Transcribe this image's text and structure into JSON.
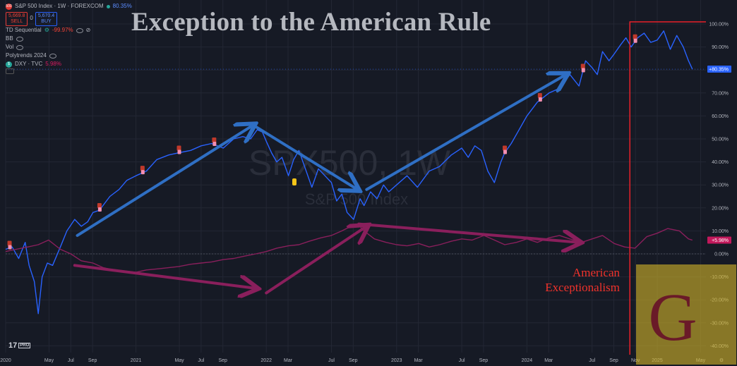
{
  "header": {
    "symbol_badge": "500",
    "symbol_title": "S&P 500 Index · 1W · FOREXCOM",
    "last_change": "80.35%",
    "sell_price": "5,669.8",
    "sell_label": "SELL",
    "spread": "0",
    "buy_price": "5,670.4",
    "buy_label": "BUY"
  },
  "indicators": [
    {
      "name": "TD Sequential",
      "value": "-99.97%"
    },
    {
      "name": "BB",
      "value": ""
    },
    {
      "name": "Vol",
      "value": ""
    },
    {
      "name": "Polytrends 2024",
      "value": ""
    }
  ],
  "compare": {
    "symbol": "DXY · TVC",
    "value": "5.98%"
  },
  "title": "Exception to the American Rule",
  "watermark": {
    "ticker": "SPX500, 1W",
    "name": "S&P 500 Index"
  },
  "annotation": {
    "line1": "American",
    "line2": "Exceptionalism"
  },
  "logo": {
    "letter": "G"
  },
  "footer_brand": {
    "mark": "17",
    "tag": "PRO"
  },
  "colors": {
    "spx": "#2962ff",
    "dxy": "#8a1f5c",
    "arrow_blue": "#2f6fc4",
    "arrow_purple": "#8a1f5c",
    "highlight_box": "#e8202a",
    "background": "#161a25"
  },
  "chart_data": {
    "type": "line",
    "y_axis_labels": [
      "100.00%",
      "90.00%",
      "80.00%",
      "70.00%",
      "60.00%",
      "50.00%",
      "40.00%",
      "30.00%",
      "20.00%",
      "10.00%",
      "0.00%",
      "-10.00%",
      "-20.00%",
      "-30.00%",
      "-40.00%"
    ],
    "ylim": [
      -45,
      105
    ],
    "y_scale": "percent",
    "x_axis_labels": [
      "2020",
      "May",
      "Jul",
      "Sep",
      "2021",
      "May",
      "Jul",
      "Sep",
      "2022",
      "Mar",
      "Jul",
      "Sep",
      "2023",
      "Mar",
      "Jul",
      "Sep",
      "2024",
      "Mar",
      "Jul",
      "Sep",
      "Nov",
      "2025",
      "May"
    ],
    "x_tick_t": [
      0.0,
      0.333,
      0.5,
      0.667,
      1.0,
      1.333,
      1.5,
      1.667,
      2.0,
      2.167,
      2.5,
      2.667,
      3.0,
      3.167,
      3.5,
      3.667,
      4.0,
      4.167,
      4.5,
      4.667,
      4.833,
      5.0,
      5.333
    ],
    "xlim": [
      0,
      5.5
    ],
    "series": [
      {
        "name": "S&P 500 Index",
        "last_value_label": "+80.35%",
        "t": [
          0.0,
          0.05,
          0.1,
          0.15,
          0.18,
          0.22,
          0.25,
          0.28,
          0.32,
          0.36,
          0.42,
          0.47,
          0.53,
          0.58,
          0.63,
          0.67,
          0.72,
          0.8,
          0.87,
          0.93,
          1.0,
          1.08,
          1.16,
          1.25,
          1.33,
          1.42,
          1.5,
          1.58,
          1.67,
          1.75,
          1.82,
          1.88,
          1.93,
          1.97,
          2.0,
          2.04,
          2.08,
          2.12,
          2.17,
          2.21,
          2.25,
          2.3,
          2.35,
          2.4,
          2.45,
          2.5,
          2.54,
          2.58,
          2.62,
          2.67,
          2.72,
          2.75,
          2.8,
          2.85,
          2.9,
          2.94,
          3.0,
          3.08,
          3.16,
          3.25,
          3.33,
          3.42,
          3.5,
          3.55,
          3.6,
          3.65,
          3.7,
          3.75,
          3.8,
          3.83,
          3.88,
          3.93,
          4.0,
          4.08,
          4.17,
          4.25,
          4.33,
          4.4,
          4.45,
          4.5,
          4.54,
          4.58,
          4.63,
          4.67,
          4.72,
          4.76,
          4.8,
          4.85,
          4.9,
          4.95,
          5.0,
          5.05,
          5.1,
          5.15,
          5.2,
          5.24,
          5.27
        ],
        "values": [
          2.0,
          3.0,
          -2.0,
          5.0,
          -5.0,
          -12.0,
          -26.0,
          -10.0,
          -4.0,
          -5.0,
          3.0,
          10.0,
          15.0,
          12.0,
          14.0,
          18.0,
          19.0,
          25.0,
          28.0,
          32.0,
          34.0,
          36.0,
          41.0,
          43.0,
          44.0,
          45.0,
          47.0,
          48.0,
          46.0,
          50.0,
          51.0,
          50.0,
          54.0,
          53.0,
          49.0,
          44.0,
          40.0,
          42.0,
          34.0,
          41.0,
          45.0,
          37.0,
          29.0,
          37.0,
          34.0,
          31.0,
          23.0,
          26.0,
          18.0,
          15.0,
          24.0,
          21.0,
          27.0,
          24.0,
          30.0,
          27.0,
          30.0,
          34.0,
          29.0,
          36.0,
          38.0,
          43.0,
          46.0,
          42.0,
          47.0,
          45.0,
          36.0,
          31.0,
          40.0,
          44.0,
          48.0,
          53.0,
          60.0,
          66.0,
          70.0,
          72.0,
          78.0,
          73.0,
          84.0,
          81.0,
          78.0,
          88.0,
          84.0,
          87.0,
          91.0,
          94.0,
          90.0,
          94.0,
          96.0,
          92.0,
          93.0,
          97.0,
          89.0,
          95.0,
          90.0,
          84.0,
          80.35
        ]
      },
      {
        "name": "DXY · TVC",
        "last_value_label": "+5.98%",
        "t": [
          0.0,
          0.08,
          0.17,
          0.25,
          0.33,
          0.42,
          0.5,
          0.58,
          0.67,
          0.75,
          0.83,
          0.92,
          1.0,
          1.08,
          1.17,
          1.25,
          1.33,
          1.42,
          1.5,
          1.58,
          1.67,
          1.75,
          1.83,
          1.92,
          2.0,
          2.08,
          2.17,
          2.25,
          2.33,
          2.42,
          2.5,
          2.58,
          2.65,
          2.7,
          2.75,
          2.83,
          2.92,
          3.0,
          3.08,
          3.17,
          3.25,
          3.33,
          3.42,
          3.5,
          3.58,
          3.67,
          3.75,
          3.83,
          3.92,
          4.0,
          4.08,
          4.17,
          4.25,
          4.33,
          4.42,
          4.5,
          4.58,
          4.67,
          4.75,
          4.83,
          4.92,
          5.0,
          5.08,
          5.17,
          5.24,
          5.27
        ],
        "values": [
          1.0,
          2.0,
          3.0,
          4.0,
          6.0,
          2.0,
          0.0,
          -3.0,
          -4.0,
          -6.0,
          -7.0,
          -7.5,
          -8.0,
          -7.0,
          -6.5,
          -6.0,
          -5.5,
          -4.5,
          -4.0,
          -3.5,
          -2.5,
          -2.0,
          -1.0,
          0.0,
          1.0,
          2.5,
          3.5,
          4.0,
          5.5,
          7.0,
          8.0,
          10.0,
          12.0,
          13.0,
          10.0,
          6.5,
          5.0,
          4.0,
          3.5,
          4.5,
          3.0,
          4.0,
          5.5,
          6.5,
          6.0,
          8.0,
          6.0,
          4.0,
          5.0,
          6.5,
          5.0,
          7.0,
          8.0,
          6.5,
          5.0,
          6.5,
          8.0,
          4.5,
          3.0,
          2.5,
          7.5,
          9.0,
          11.0,
          10.0,
          6.5,
          5.98
        ]
      }
    ],
    "arrows": [
      {
        "color": "blue",
        "from": [
          0.55,
          8.0
        ],
        "to": [
          1.9,
          56.0
        ]
      },
      {
        "color": "blue",
        "from": [
          1.9,
          56.0
        ],
        "to": [
          2.7,
          28.0
        ]
      },
      {
        "color": "blue",
        "from": [
          2.77,
          28.0
        ],
        "to": [
          4.3,
          78.0
        ]
      },
      {
        "color": "purple",
        "from": [
          0.53,
          -5.0
        ],
        "to": [
          1.92,
          -15.0
        ]
      },
      {
        "color": "purple",
        "from": [
          2.0,
          -17.0
        ],
        "to": [
          2.77,
          12.0
        ]
      },
      {
        "color": "purple",
        "from": [
          2.71,
          13.0
        ],
        "to": [
          4.4,
          5.0
        ]
      }
    ],
    "signal_markers_t": [
      0.03,
      0.72,
      1.05,
      1.33,
      1.6,
      3.83,
      4.1,
      4.43,
      4.83
    ],
    "highlight_range_t": [
      4.79,
      5.28
    ],
    "grid": true,
    "legend_position": "top-left"
  }
}
